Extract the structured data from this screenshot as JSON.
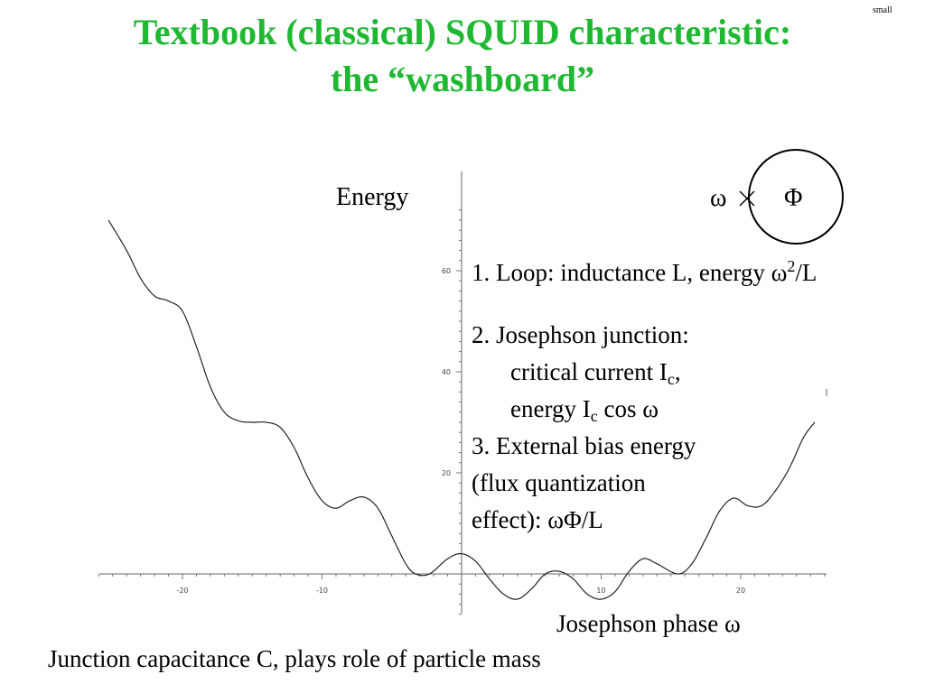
{
  "slide": {
    "title_line1": "Textbook (classical) SQUID characteristic:",
    "title_line2": "the “washboard”",
    "corner_tag": "small"
  },
  "diagram": {
    "omega": "ω",
    "cross": "×",
    "phi": "Φ"
  },
  "items": {
    "loop": "1. Loop: inductance L, energy ω",
    "loop_sup": "2",
    "loop_end": "/L",
    "jj_line1": "2. Josephson junction:",
    "jj_line2": "critical current I",
    "jj_line2_sub": "c",
    "jj_line2_end": ",",
    "jj_line3": "energy I",
    "jj_line3_sub": "c",
    "jj_line3_end": " cos ω",
    "bias_line1": "3. External bias energy",
    "bias_line2": "(flux quantization",
    "bias_line3": "effect):   ωΦ/L"
  },
  "footer": {
    "note": "Junction capacitance C, plays role of particle mass"
  },
  "chart_data": {
    "type": "line",
    "title": "",
    "xlabel": "Josephson phase   ω",
    "ylabel": "Energy",
    "xlim": [
      -26,
      26
    ],
    "ylim": [
      -5,
      72
    ],
    "x_ticks": [
      -20,
      -10,
      10,
      20
    ],
    "y_ticks": [
      20,
      40,
      60
    ],
    "grid": false,
    "series": [
      {
        "points": [
          [
            -25.3,
            70.0
          ],
          [
            -24.0,
            64.0
          ],
          [
            -23.0,
            58.5
          ],
          [
            -22.0,
            55.0
          ],
          [
            -21.0,
            54.0
          ],
          [
            -20.0,
            52.0
          ],
          [
            -19.0,
            45.0
          ],
          [
            -18.0,
            37.0
          ],
          [
            -17.0,
            32.0
          ],
          [
            -16.0,
            30.3
          ],
          [
            -15.0,
            30.0
          ],
          [
            -14.0,
            30.0
          ],
          [
            -13.0,
            29.0
          ],
          [
            -12.0,
            25.0
          ],
          [
            -11.0,
            19.0
          ],
          [
            -10.0,
            14.5
          ],
          [
            -9.0,
            13.0
          ],
          [
            -8.0,
            14.5
          ],
          [
            -7.0,
            15.2
          ],
          [
            -6.0,
            13.0
          ],
          [
            -5.0,
            7.5
          ],
          [
            -4.0,
            2.0
          ],
          [
            -3.3,
            0.0
          ],
          [
            -2.3,
            0.0
          ],
          [
            -1.0,
            3.0
          ],
          [
            0.0,
            4.0
          ],
          [
            1.0,
            2.5
          ],
          [
            2.0,
            -1.0
          ],
          [
            3.0,
            -4.0
          ],
          [
            4.0,
            -5.0
          ],
          [
            5.0,
            -3.0
          ],
          [
            6.0,
            0.0
          ],
          [
            7.0,
            0.5
          ],
          [
            8.0,
            -1.0
          ],
          [
            9.0,
            -4.0
          ],
          [
            10.0,
            -5.0
          ],
          [
            11.0,
            -3.5
          ],
          [
            12.0,
            0.5
          ],
          [
            13.0,
            3.0
          ],
          [
            14.0,
            2.0
          ],
          [
            15.5,
            0.0
          ],
          [
            16.5,
            2.0
          ],
          [
            17.5,
            7.0
          ],
          [
            18.5,
            12.5
          ],
          [
            19.5,
            15.0
          ],
          [
            20.5,
            13.5
          ],
          [
            21.5,
            13.5
          ],
          [
            22.5,
            16.5
          ],
          [
            23.5,
            21.0
          ],
          [
            24.5,
            27.0
          ],
          [
            25.3,
            30.0
          ]
        ]
      }
    ]
  }
}
